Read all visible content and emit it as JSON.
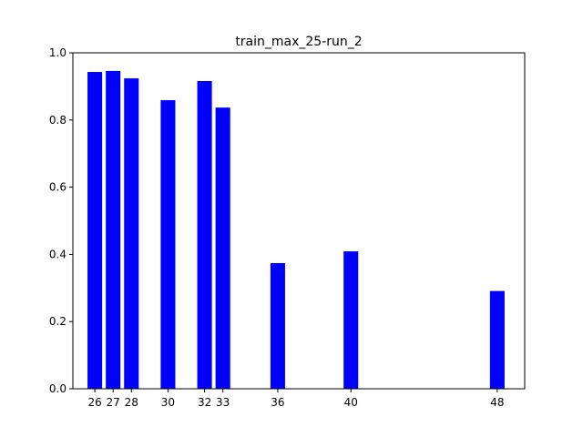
{
  "chart_data": {
    "type": "bar",
    "title": "train_max_25-run_2",
    "xlabel": "",
    "ylabel": "",
    "x": [
      26,
      27,
      28,
      30,
      32,
      33,
      36,
      40,
      48
    ],
    "tick_labels": [
      "26",
      "27",
      "28",
      "30",
      "32",
      "33",
      "36",
      "40",
      "48"
    ],
    "values": [
      0.943,
      0.946,
      0.924,
      0.859,
      0.916,
      0.837,
      0.374,
      0.409,
      0.291
    ],
    "xlim": [
      24.8,
      49.5
    ],
    "ylim": [
      0,
      1.0
    ],
    "yticks": [
      0.0,
      0.2,
      0.4,
      0.6,
      0.8,
      1.0
    ],
    "ytick_labels": [
      "0.0",
      "0.2",
      "0.4",
      "0.6",
      "0.8",
      "1.0"
    ],
    "bar_color": "#0000ff",
    "grid": false,
    "legend": "none"
  }
}
